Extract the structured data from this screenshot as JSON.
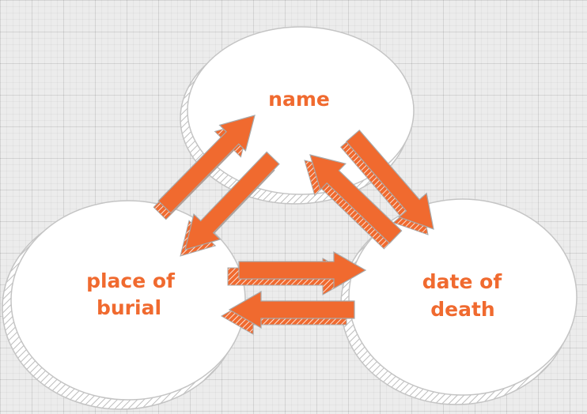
{
  "diagram": {
    "colors": {
      "accent": "#f06a2f",
      "circle_fill": "#ffffff",
      "circle_stroke": "#c4c4c4",
      "arrow_stroke": "#a8a8a8"
    },
    "nodes": {
      "name": {
        "label": "name"
      },
      "place_of_burial": {
        "line1": "place of",
        "line2": "burial"
      },
      "date_of_death": {
        "line1": "date of",
        "line2": "death"
      }
    }
  }
}
